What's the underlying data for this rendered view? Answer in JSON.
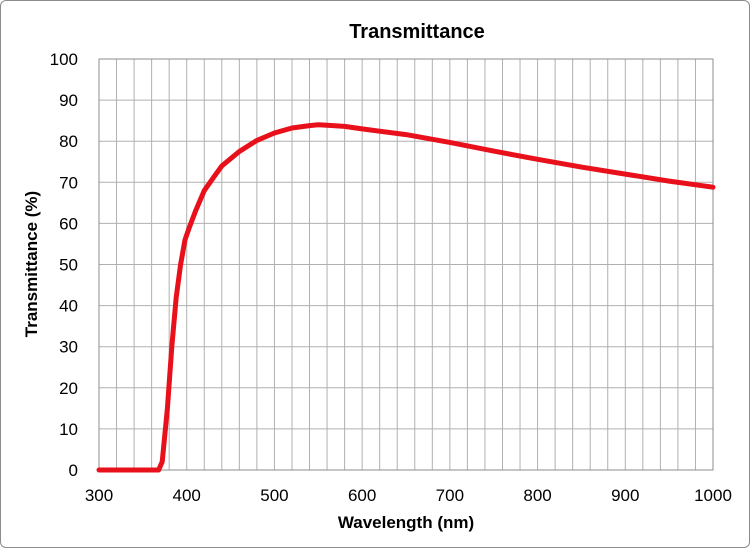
{
  "chart_data": {
    "type": "line",
    "title": "Transmittance",
    "xlabel": "Wavelength (nm)",
    "ylabel": "Transmittance (%)",
    "xlim": [
      300,
      1000
    ],
    "ylim": [
      0,
      100
    ],
    "x_ticks": [
      300,
      400,
      500,
      600,
      700,
      800,
      900,
      1000
    ],
    "y_ticks": [
      0,
      10,
      20,
      30,
      40,
      50,
      60,
      70,
      80,
      90,
      100
    ],
    "x_minor_step": 20,
    "grid": true,
    "line_color": "#e8101a",
    "series": [
      {
        "x": [
          300,
          320,
          340,
          360,
          368,
          372,
          378,
          383,
          388,
          393,
          398,
          403,
          410,
          420,
          430,
          440,
          460,
          480,
          500,
          520,
          540,
          550,
          560,
          580,
          600,
          650,
          700,
          750,
          800,
          850,
          900,
          950,
          1000
        ],
        "values": [
          0,
          0,
          0,
          0,
          0,
          2,
          15,
          30,
          42,
          50,
          56,
          59,
          63,
          68,
          71,
          74,
          77.5,
          80.2,
          82,
          83.2,
          83.8,
          84,
          83.9,
          83.6,
          83,
          81.6,
          79.7,
          77.6,
          75.6,
          73.7,
          72,
          70.3,
          68.8
        ]
      }
    ]
  }
}
